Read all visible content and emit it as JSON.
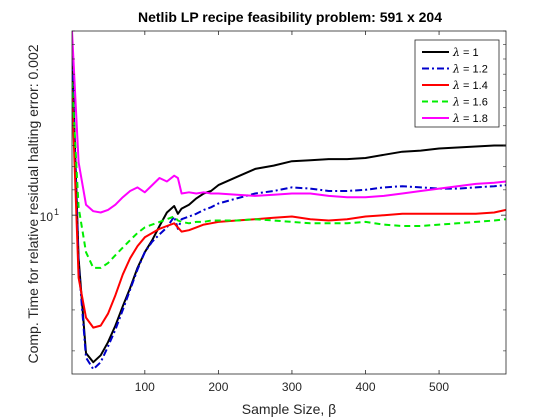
{
  "chart_data": {
    "type": "line",
    "title": "Netlib LP recipe feasibility problem: 591 x 204",
    "xlabel": "Sample Size, β",
    "ylabel": "Comp. Time for relative residual halting error: 0.002",
    "y_scale": "log",
    "xlim": [
      1,
      591
    ],
    "ylim": [
      5.5,
      20
    ],
    "x_ticks": [
      100,
      200,
      300,
      400,
      500
    ],
    "x_tick_labels": [
      "100",
      "200",
      "300",
      "400",
      "500"
    ],
    "y_ticks": [
      10
    ],
    "y_tick_labels": [
      "10^1"
    ],
    "y_tick_base": "10",
    "y_tick_exp": "1",
    "grid": false,
    "legend_position": "top-right",
    "series": [
      {
        "name": "λ = 1",
        "legend_prefix": "λ",
        "legend_value": "= 1",
        "color": "#000000",
        "dash": "solid",
        "x": [
          1,
          10,
          20,
          30,
          40,
          50,
          60,
          70,
          80,
          90,
          100,
          110,
          120,
          130,
          140,
          145,
          150,
          160,
          170,
          180,
          190,
          200,
          225,
          250,
          275,
          300,
          325,
          350,
          375,
          400,
          425,
          450,
          475,
          500,
          525,
          550,
          575,
          591
        ],
        "y": [
          18.2,
          8.5,
          5.95,
          5.75,
          5.9,
          6.2,
          6.6,
          7.1,
          7.6,
          8.2,
          8.7,
          9.1,
          9.6,
          10.1,
          10.35,
          10.05,
          10.25,
          10.4,
          10.65,
          10.85,
          10.95,
          11.2,
          11.55,
          11.9,
          12.05,
          12.25,
          12.3,
          12.35,
          12.35,
          12.4,
          12.55,
          12.7,
          12.75,
          12.85,
          12.9,
          12.95,
          13.0,
          13.0
        ]
      },
      {
        "name": "λ = 1.2",
        "legend_prefix": "λ",
        "legend_value": "= 1.2",
        "color": "#0000cc",
        "dash": "dashdot",
        "x": [
          1,
          10,
          20,
          30,
          40,
          50,
          60,
          70,
          80,
          90,
          100,
          110,
          120,
          130,
          140,
          145,
          150,
          160,
          170,
          180,
          190,
          200,
          225,
          250,
          275,
          300,
          325,
          350,
          375,
          400,
          425,
          450,
          475,
          500,
          525,
          550,
          575,
          591
        ],
        "y": [
          18.0,
          8.3,
          5.85,
          5.6,
          5.75,
          6.1,
          6.5,
          7.0,
          7.55,
          8.15,
          8.7,
          9.05,
          9.3,
          9.55,
          9.95,
          9.5,
          9.85,
          9.95,
          10.05,
          10.2,
          10.3,
          10.45,
          10.65,
          10.85,
          10.95,
          11.1,
          11.05,
          10.95,
          10.95,
          11.0,
          11.1,
          11.15,
          11.1,
          11.05,
          11.05,
          11.1,
          11.15,
          11.2
        ]
      },
      {
        "name": "λ = 1.4",
        "legend_prefix": "λ",
        "legend_value": "= 1.4",
        "color": "#ff0000",
        "dash": "solid",
        "x": [
          1,
          10,
          20,
          30,
          40,
          50,
          60,
          70,
          80,
          90,
          100,
          110,
          120,
          130,
          140,
          145,
          150,
          160,
          170,
          180,
          190,
          200,
          225,
          250,
          275,
          300,
          325,
          350,
          375,
          400,
          425,
          450,
          475,
          500,
          525,
          550,
          575,
          591
        ],
        "y": [
          16.0,
          7.9,
          6.8,
          6.55,
          6.6,
          6.9,
          7.4,
          8.0,
          8.5,
          8.9,
          9.2,
          9.35,
          9.5,
          9.6,
          9.7,
          9.55,
          9.4,
          9.45,
          9.55,
          9.65,
          9.7,
          9.75,
          9.8,
          9.85,
          9.9,
          9.95,
          9.85,
          9.8,
          9.85,
          9.95,
          10.0,
          10.05,
          10.05,
          10.05,
          10.05,
          10.05,
          10.1,
          10.2
        ]
      },
      {
        "name": "λ = 1.6",
        "legend_prefix": "λ",
        "legend_value": "= 1.6",
        "color": "#00ee00",
        "dash": "dashed",
        "x": [
          1,
          10,
          20,
          30,
          40,
          50,
          60,
          70,
          80,
          90,
          100,
          110,
          120,
          130,
          140,
          145,
          150,
          160,
          170,
          180,
          190,
          200,
          225,
          250,
          275,
          300,
          325,
          350,
          375,
          400,
          425,
          450,
          475,
          500,
          525,
          550,
          575,
          591
        ],
        "y": [
          16.5,
          10.3,
          8.7,
          8.2,
          8.2,
          8.35,
          8.6,
          8.85,
          9.1,
          9.35,
          9.55,
          9.65,
          9.75,
          9.85,
          9.95,
          9.8,
          9.75,
          9.7,
          9.75,
          9.75,
          9.8,
          9.8,
          9.8,
          9.85,
          9.8,
          9.75,
          9.7,
          9.7,
          9.7,
          9.75,
          9.65,
          9.6,
          9.6,
          9.65,
          9.7,
          9.75,
          9.8,
          9.85
        ]
      },
      {
        "name": "λ = 1.8",
        "legend_prefix": "λ",
        "legend_value": "= 1.8",
        "color": "#ff00ff",
        "dash": "solid",
        "x": [
          1,
          10,
          20,
          30,
          40,
          50,
          60,
          70,
          80,
          90,
          100,
          110,
          120,
          130,
          140,
          145,
          150,
          160,
          170,
          180,
          190,
          200,
          225,
          250,
          275,
          300,
          325,
          350,
          375,
          400,
          425,
          450,
          475,
          500,
          525,
          550,
          575,
          591
        ],
        "y": [
          20.0,
          12.2,
          10.4,
          10.15,
          10.1,
          10.2,
          10.4,
          10.7,
          10.95,
          11.1,
          10.9,
          11.2,
          11.5,
          11.35,
          11.6,
          11.5,
          10.85,
          10.9,
          10.85,
          10.9,
          10.85,
          10.85,
          10.8,
          10.75,
          10.8,
          10.85,
          10.85,
          10.75,
          10.7,
          10.7,
          10.75,
          10.85,
          10.95,
          11.05,
          11.15,
          11.25,
          11.3,
          11.35
        ]
      }
    ]
  }
}
